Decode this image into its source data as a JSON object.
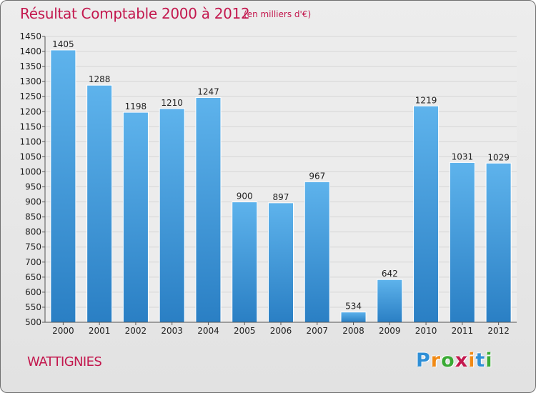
{
  "title": "Résultat Comptable 2000 à 2012",
  "unit_note": "(en milliers d'€)",
  "commune": "WATTIGNIES",
  "logo": {
    "letters": [
      "P",
      "r",
      "o",
      "x",
      "i",
      "t",
      "i"
    ],
    "colors": [
      "#2f8fd6",
      "#f08a16",
      "#3aaa35",
      "#c3184e",
      "#f08a16",
      "#2f8fd6",
      "#3aaa35"
    ]
  },
  "colors": {
    "bar_light": "#5eb3ec",
    "bar_dark": "#2a7fc4",
    "title": "#c3184e",
    "grid": "#d6d6d6"
  },
  "chart_data": {
    "type": "bar",
    "categories": [
      "2000",
      "2001",
      "2002",
      "2003",
      "2004",
      "2005",
      "2006",
      "2007",
      "2008",
      "2009",
      "2010",
      "2011",
      "2012"
    ],
    "values": [
      1405,
      1288,
      1198,
      1210,
      1247,
      900,
      897,
      967,
      534,
      642,
      1219,
      1031,
      1029
    ],
    "yticks": [
      500,
      550,
      600,
      650,
      700,
      750,
      800,
      850,
      900,
      950,
      1000,
      1050,
      1100,
      1150,
      1200,
      1250,
      1300,
      1350,
      1400,
      1450
    ],
    "ylim": [
      500,
      1450
    ],
    "grid": true
  }
}
